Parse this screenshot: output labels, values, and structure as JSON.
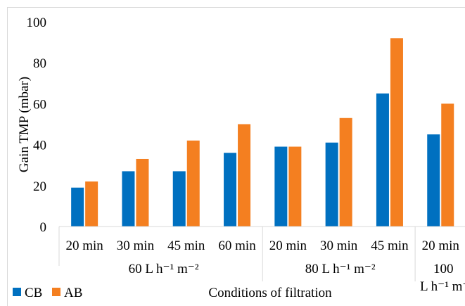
{
  "chart_data": {
    "type": "bar",
    "title": "",
    "ylabel": "Gain TMP (mbar)",
    "xlabel": "Conditions of filtration",
    "ylim": [
      0,
      100
    ],
    "yticks": [
      "0",
      "20",
      "40",
      "60",
      "80",
      "100"
    ],
    "categories": [
      "20 min",
      "30 min",
      "45 min",
      "60 min",
      "20 min",
      "30 min",
      "45 min",
      "20 min"
    ],
    "groups": [
      {
        "label": "60 L h⁻¹ m⁻²",
        "categories": [
          "20 min",
          "30 min",
          "45 min",
          "60 min"
        ]
      },
      {
        "label": "80 L h⁻¹ m⁻²",
        "categories": [
          "20 min",
          "30 min",
          "45 min"
        ]
      },
      {
        "label_line1": "100",
        "label_line2": "L h⁻¹ m⁻",
        "categories": [
          "20 min"
        ]
      }
    ],
    "series": [
      {
        "name": "CB",
        "color": "#0070C0",
        "values": [
          19,
          27,
          27,
          36,
          39,
          41,
          65,
          45
        ]
      },
      {
        "name": "AB",
        "color": "#F47F20",
        "values": [
          22,
          33,
          42,
          50,
          39,
          53,
          92,
          60
        ]
      }
    ],
    "grid": false,
    "legend": "bottom-left"
  }
}
